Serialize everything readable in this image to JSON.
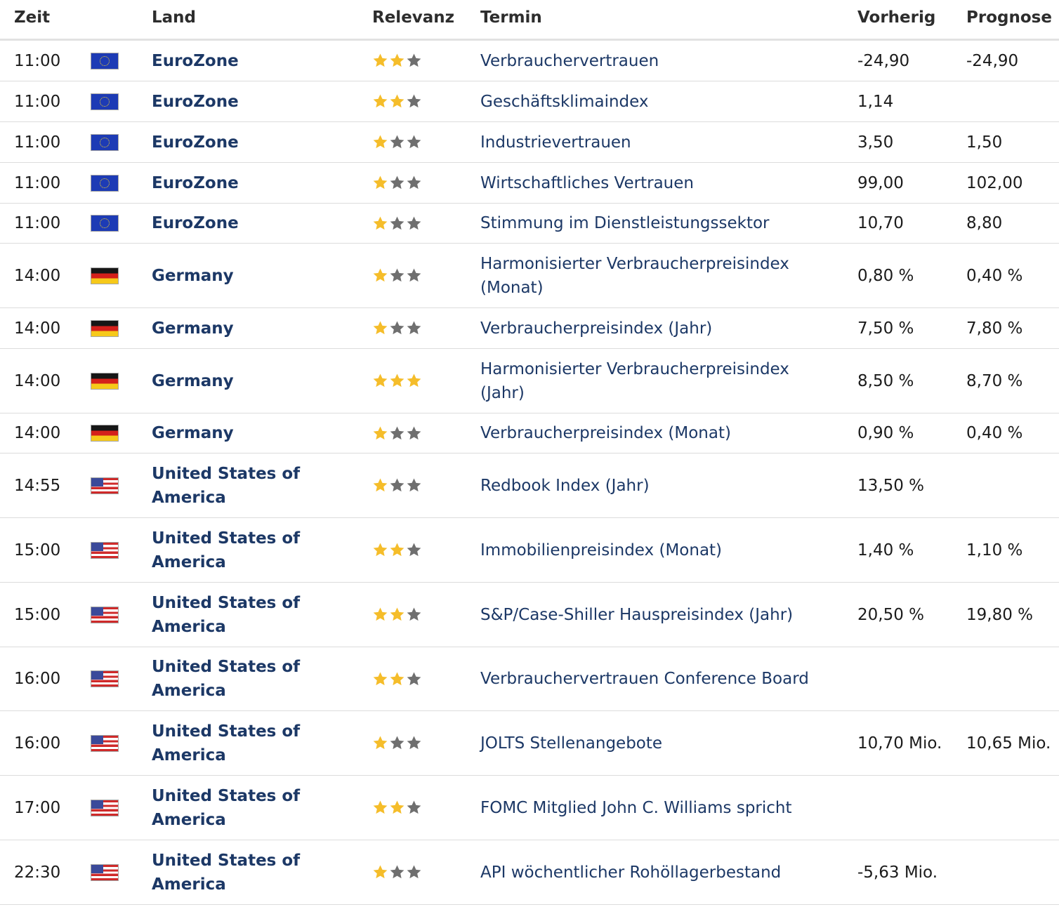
{
  "headers": {
    "time": "Zeit",
    "country": "Land",
    "relevance": "Relevanz",
    "event": "Termin",
    "previous": "Vorherig",
    "forecast": "Prognose"
  },
  "colors": {
    "country_link": "#1c3866",
    "star_on": "#f5bd2a",
    "star_off": "#6f6f6f"
  },
  "rows": [
    {
      "time": "11:00",
      "flag": "eu-flag-icon",
      "country": "EuroZone",
      "stars": 2,
      "event": "Verbrauchervertrauen",
      "previous": "-24,90",
      "forecast": "-24,90"
    },
    {
      "time": "11:00",
      "flag": "eu-flag-icon",
      "country": "EuroZone",
      "stars": 2,
      "event": "Geschäftsklimaindex",
      "previous": "1,14",
      "forecast": ""
    },
    {
      "time": "11:00",
      "flag": "eu-flag-icon",
      "country": "EuroZone",
      "stars": 1,
      "event": "Industrievertrauen",
      "previous": "3,50",
      "forecast": "1,50"
    },
    {
      "time": "11:00",
      "flag": "eu-flag-icon",
      "country": "EuroZone",
      "stars": 1,
      "event": "Wirtschaftliches Vertrauen",
      "previous": "99,00",
      "forecast": "102,00"
    },
    {
      "time": "11:00",
      "flag": "eu-flag-icon",
      "country": "EuroZone",
      "stars": 1,
      "event": "Stimmung im Dienstleistungssektor",
      "previous": "10,70",
      "forecast": "8,80"
    },
    {
      "time": "14:00",
      "flag": "germany-flag-icon",
      "country": "Germany",
      "stars": 1,
      "event": "Harmonisierter Verbraucherpreisindex (Monat)",
      "previous": "0,80 %",
      "forecast": "0,40 %"
    },
    {
      "time": "14:00",
      "flag": "germany-flag-icon",
      "country": "Germany",
      "stars": 1,
      "event": "Verbraucherpreisindex (Jahr)",
      "previous": "7,50 %",
      "forecast": "7,80 %"
    },
    {
      "time": "14:00",
      "flag": "germany-flag-icon",
      "country": "Germany",
      "stars": 3,
      "event": "Harmonisierter Verbraucherpreisindex (Jahr)",
      "previous": "8,50 %",
      "forecast": "8,70 %"
    },
    {
      "time": "14:00",
      "flag": "germany-flag-icon",
      "country": "Germany",
      "stars": 1,
      "event": "Verbraucherpreisindex (Monat)",
      "previous": "0,90 %",
      "forecast": "0,40 %"
    },
    {
      "time": "14:55",
      "flag": "usa-flag-icon",
      "country": "United States of America",
      "stars": 1,
      "event": "Redbook Index (Jahr)",
      "previous": "13,50 %",
      "forecast": ""
    },
    {
      "time": "15:00",
      "flag": "usa-flag-icon",
      "country": "United States of America",
      "stars": 2,
      "event": "Immobilienpreisindex (Monat)",
      "previous": "1,40 %",
      "forecast": "1,10 %"
    },
    {
      "time": "15:00",
      "flag": "usa-flag-icon",
      "country": "United States of America",
      "stars": 2,
      "event": "S&P/Case-Shiller Hauspreisindex (Jahr)",
      "previous": "20,50 %",
      "forecast": "19,80 %"
    },
    {
      "time": "16:00",
      "flag": "usa-flag-icon",
      "country": "United States of America",
      "stars": 2,
      "event": "Verbrauchervertrauen Conference Board",
      "previous": "",
      "forecast": ""
    },
    {
      "time": "16:00",
      "flag": "usa-flag-icon",
      "country": "United States of America",
      "stars": 1,
      "event": "JOLTS Stellenangebote",
      "previous": "10,70 Mio.",
      "forecast": "10,65 Mio."
    },
    {
      "time": "17:00",
      "flag": "usa-flag-icon",
      "country": "United States of America",
      "stars": 2,
      "event": "FOMC Mitglied John C. Williams spricht",
      "previous": "",
      "forecast": ""
    },
    {
      "time": "22:30",
      "flag": "usa-flag-icon",
      "country": "United States of America",
      "stars": 1,
      "event": "API wöchentlicher Rohöllagerbestand",
      "previous": "-5,63 Mio.",
      "forecast": ""
    }
  ]
}
